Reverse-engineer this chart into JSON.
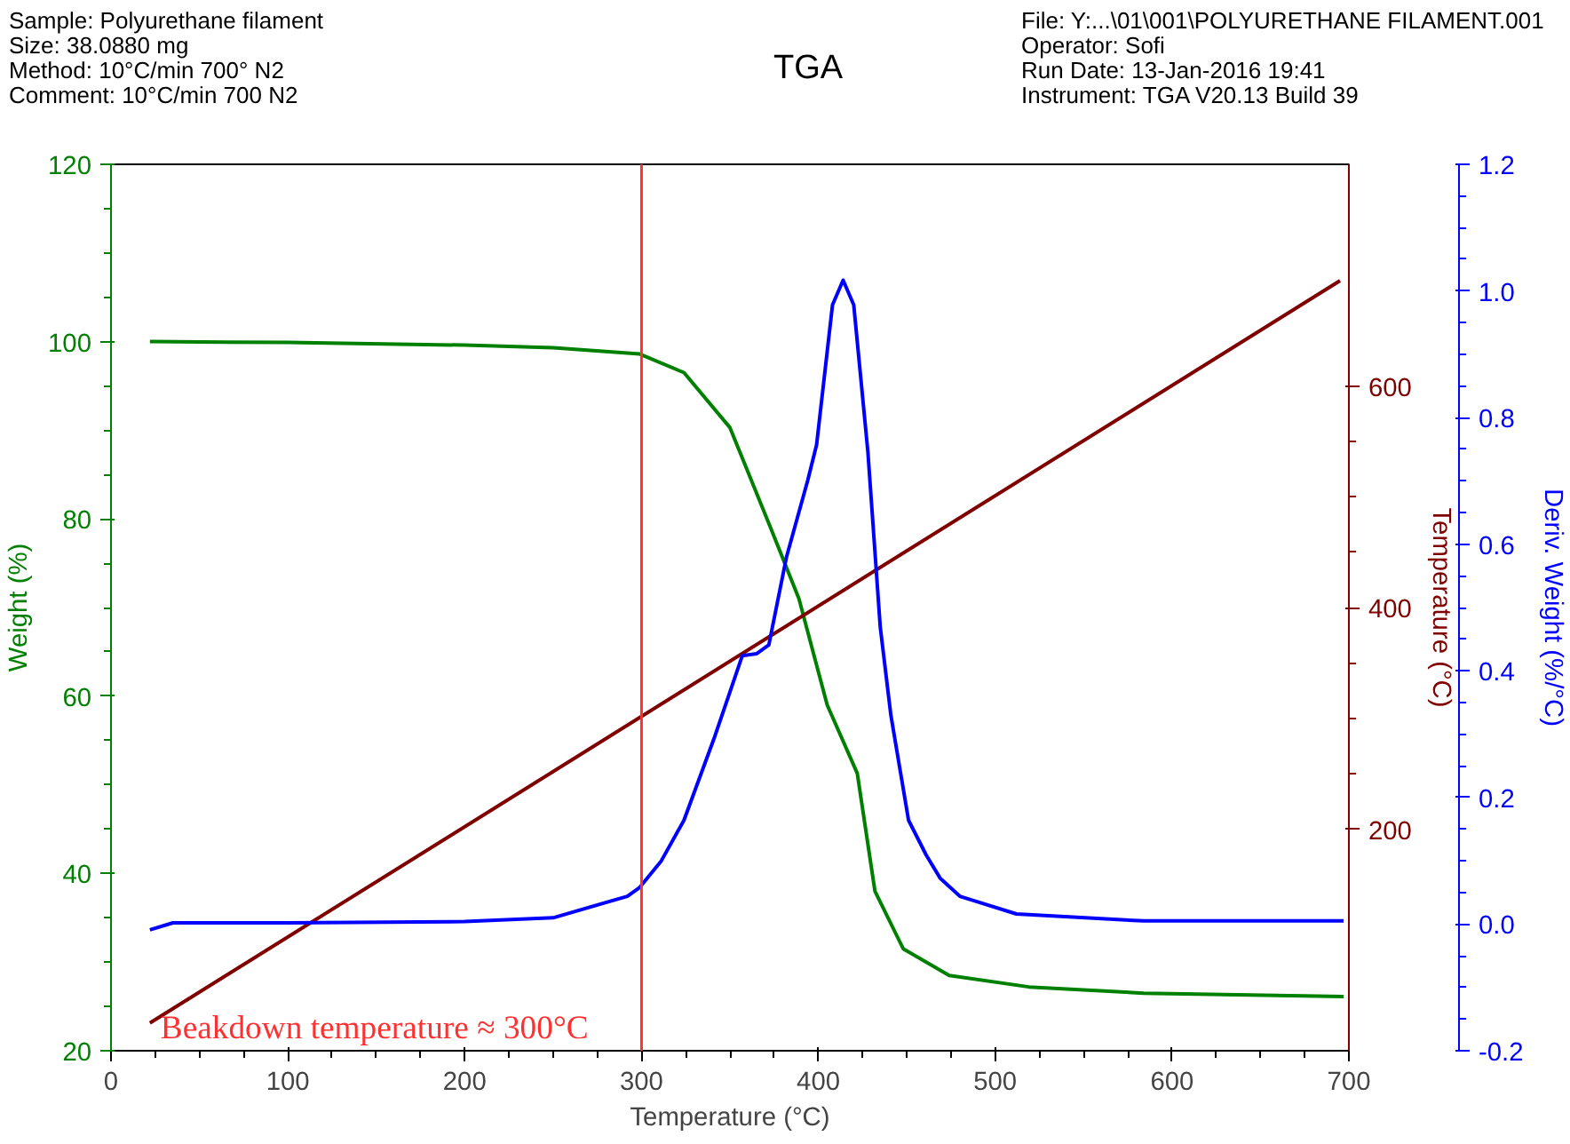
{
  "chart_data": {
    "type": "line",
    "title": "TGA",
    "xlabel": "Temperature (°C)",
    "ylabel": "Weight (%)",
    "y2label": "Temperature (°C)",
    "y3label": "Deriv. Weight (%/°C)",
    "annotations": [
      "Sample: Polyurethane filament",
      "Size:  38.0880 mg",
      "Method: 10°C/min 700° N2",
      "Comment: 10°C/min 700 N2",
      "File: Y:...\\01\\001\\POLYURETHANE FILAMENT.001",
      "Operator: Sofi",
      "Run Date: 13-Jan-2016 19:41",
      "Instrument: TGA V20.13 Build 39"
    ],
    "xlim": [
      0,
      700
    ],
    "xticks": [
      0,
      100,
      200,
      300,
      400,
      500,
      600,
      700
    ],
    "ylim": [
      20,
      120
    ],
    "yticks": [
      20,
      40,
      60,
      80,
      100,
      120
    ],
    "y2lim": [
      0,
      800
    ],
    "y2ticks": [
      200,
      400,
      600
    ],
    "y3lim": [
      -0.2,
      1.2
    ],
    "y3ticks": [
      {
        "value": -0.2,
        "label": "-0.2"
      },
      {
        "value": 0,
        "label": "0.0"
      },
      {
        "value": 0.2,
        "label": "0.2"
      },
      {
        "value": 0.4,
        "label": "0.4"
      },
      {
        "value": 0.6,
        "label": "0.6"
      },
      {
        "value": 0.8,
        "label": "0.8"
      },
      {
        "value": 1.0,
        "label": "1.0"
      },
      {
        "value": 1.2,
        "label": "1.2"
      }
    ],
    "grid": false,
    "line_style": "solid",
    "ref_lines": [
      {
        "axis": "x",
        "value": 300,
        "label": "Beakdown temperature ≈ 300°C",
        "color": "#ff3030"
      }
    ],
    "series": [
      {
        "color": "#008000",
        "x": [
          22,
          100,
          200,
          250,
          299,
          324,
          350,
          373,
          389,
          405,
          422,
          432,
          448,
          474,
          519,
          584,
          697
        ],
        "values": [
          100,
          99.9,
          99.6,
          99.3,
          98.6,
          96.5,
          90.3,
          79,
          71,
          59,
          51.3,
          38,
          31.5,
          28.5,
          27.2,
          26.5,
          26.1
        ]
      },
      {
        "color": "#800000",
        "axis": "y2",
        "x": [
          22,
          695
        ],
        "values": [
          25,
          695
        ]
      },
      {
        "color": "#0000ff",
        "axis": "y3",
        "x": [
          22,
          35,
          100,
          200,
          250,
          292,
          299,
          311,
          324,
          341,
          357,
          365,
          372,
          382,
          394,
          399,
          408,
          414,
          420,
          428,
          435,
          441,
          451,
          461,
          469,
          480,
          512,
          584,
          697
        ],
        "values": [
          -0.009,
          0.002,
          0.002,
          0.004,
          0.01,
          0.044,
          0.058,
          0.099,
          0.164,
          0.293,
          0.424,
          0.427,
          0.441,
          0.58,
          0.701,
          0.757,
          0.978,
          1.017,
          0.978,
          0.746,
          0.469,
          0.33,
          0.164,
          0.109,
          0.072,
          0.044,
          0.016,
          0.005,
          0.005
        ]
      }
    ]
  }
}
